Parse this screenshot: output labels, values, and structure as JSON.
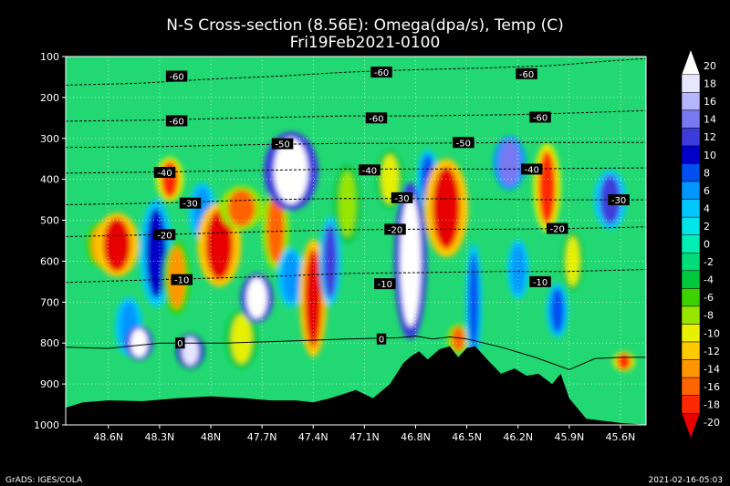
{
  "chart_data": {
    "type": "heatmap",
    "title": "N-S Cross-section (8.56E): Omega(dpa/s), Temp (C)",
    "subtitle": "Fri19Feb2021-0100",
    "x_ticks": [
      "48.6N",
      "48.3N",
      "48N",
      "47.7N",
      "47.4N",
      "47.1N",
      "46.8N",
      "46.5N",
      "46.2N",
      "45.9N",
      "45.6N"
    ],
    "x_tick_values": [
      48.6,
      48.3,
      48.0,
      47.7,
      47.4,
      47.1,
      46.8,
      46.5,
      46.2,
      45.9,
      45.6
    ],
    "xlim": [
      48.85,
      45.45
    ],
    "y_ticks": [
      100,
      200,
      300,
      400,
      500,
      600,
      700,
      800,
      900,
      1000
    ],
    "ylim": [
      100,
      1000
    ],
    "colorbar_levels": [
      20,
      18,
      16,
      14,
      12,
      10,
      8,
      6,
      4,
      2,
      0,
      -2,
      -4,
      -6,
      -8,
      -10,
      -12,
      -14,
      -16,
      -18,
      -20
    ],
    "colorbar_colors": [
      "#ffffff",
      "#e6e6ff",
      "#b4b4ff",
      "#7878f0",
      "#3c3cdc",
      "#0000c8",
      "#0050f0",
      "#0096ff",
      "#00c8ff",
      "#00e6e6",
      "#00eeb4",
      "#00dc78",
      "#00c83c",
      "#3cd200",
      "#96e600",
      "#e6f000",
      "#ffc800",
      "#ff9600",
      "#ff6400",
      "#ff2800",
      "#e60000"
    ],
    "temp_contours": [
      {
        "label": "-60",
        "points": [
          [
            48.85,
            170
          ],
          [
            48.4,
            165
          ],
          [
            48.0,
            155
          ],
          [
            47.6,
            148
          ],
          [
            47.2,
            138
          ],
          [
            46.8,
            132
          ],
          [
            46.4,
            128
          ],
          [
            46.0,
            122
          ],
          [
            45.7,
            112
          ],
          [
            45.45,
            105
          ]
        ]
      },
      {
        "label": "-60",
        "points": [
          [
            48.85,
            258
          ],
          [
            48.3,
            255
          ],
          [
            47.8,
            250
          ],
          [
            47.2,
            245
          ],
          [
            46.8,
            245
          ],
          [
            46.2,
            242
          ],
          [
            45.8,
            237
          ],
          [
            45.45,
            232
          ]
        ]
      },
      {
        "label": "-50",
        "points": [
          [
            48.85,
            322
          ],
          [
            48.3,
            320
          ],
          [
            47.7,
            315
          ],
          [
            47.2,
            312
          ],
          [
            46.8,
            312
          ],
          [
            46.2,
            310
          ],
          [
            45.8,
            310
          ],
          [
            45.45,
            310
          ]
        ]
      },
      {
        "label": "-40",
        "points": [
          [
            48.85,
            385
          ],
          [
            48.3,
            382
          ],
          [
            47.7,
            378
          ],
          [
            47.2,
            375
          ],
          [
            46.8,
            375
          ],
          [
            46.2,
            375
          ],
          [
            45.8,
            373
          ],
          [
            45.45,
            372
          ]
        ]
      },
      {
        "label": "-30",
        "points": [
          [
            48.85,
            462
          ],
          [
            48.3,
            458
          ],
          [
            47.7,
            450
          ],
          [
            47.3,
            447
          ],
          [
            46.9,
            447
          ],
          [
            46.5,
            448
          ],
          [
            46.0,
            450
          ],
          [
            45.6,
            450
          ],
          [
            45.45,
            450
          ]
        ]
      },
      {
        "label": "-20",
        "points": [
          [
            48.85,
            540
          ],
          [
            48.3,
            535
          ],
          [
            47.7,
            528
          ],
          [
            47.2,
            523
          ],
          [
            46.8,
            522
          ],
          [
            46.3,
            522
          ],
          [
            45.9,
            520
          ],
          [
            45.6,
            518
          ],
          [
            45.45,
            516
          ]
        ]
      },
      {
        "label": "-10",
        "points": [
          [
            48.85,
            652
          ],
          [
            48.3,
            645
          ],
          [
            47.7,
            638
          ],
          [
            47.2,
            630
          ],
          [
            46.8,
            628
          ],
          [
            46.3,
            625
          ],
          [
            45.9,
            625
          ],
          [
            45.6,
            622
          ],
          [
            45.45,
            620
          ]
        ]
      },
      {
        "label": "0",
        "points": [
          [
            48.85,
            810
          ],
          [
            48.6,
            813
          ],
          [
            48.3,
            800
          ],
          [
            47.9,
            800
          ],
          [
            47.6,
            796
          ],
          [
            47.2,
            790
          ],
          [
            46.9,
            787
          ],
          [
            46.8,
            783
          ],
          [
            46.7,
            790
          ],
          [
            46.6,
            785
          ],
          [
            46.5,
            790
          ],
          [
            46.3,
            810
          ],
          [
            46.1,
            835
          ],
          [
            45.9,
            865
          ],
          [
            45.75,
            838
          ],
          [
            45.6,
            835
          ],
          [
            45.45,
            835
          ]
        ]
      }
    ],
    "contour_label_positions": [
      {
        "text": "-60",
        "x": 48.2,
        "y": 148
      },
      {
        "text": "-60",
        "x": 47.0,
        "y": 138
      },
      {
        "text": "-60",
        "x": 46.15,
        "y": 142
      },
      {
        "text": "-60",
        "x": 48.2,
        "y": 257
      },
      {
        "text": "-60",
        "x": 47.03,
        "y": 250
      },
      {
        "text": "-60",
        "x": 46.07,
        "y": 248
      },
      {
        "text": "-50",
        "x": 47.58,
        "y": 313
      },
      {
        "text": "-50",
        "x": 46.52,
        "y": 310
      },
      {
        "text": "-40",
        "x": 48.27,
        "y": 383
      },
      {
        "text": "-40",
        "x": 47.07,
        "y": 377
      },
      {
        "text": "-40",
        "x": 46.12,
        "y": 375
      },
      {
        "text": "-30",
        "x": 48.12,
        "y": 458
      },
      {
        "text": "-30",
        "x": 46.88,
        "y": 445
      },
      {
        "text": "-30",
        "x": 45.61,
        "y": 450
      },
      {
        "text": "-20",
        "x": 48.27,
        "y": 535
      },
      {
        "text": "-20",
        "x": 46.92,
        "y": 522
      },
      {
        "text": "-20",
        "x": 45.97,
        "y": 520
      },
      {
        "text": "-10",
        "x": 48.17,
        "y": 645
      },
      {
        "text": "-10",
        "x": 46.98,
        "y": 655
      },
      {
        "text": "-10",
        "x": 46.07,
        "y": 650
      },
      {
        "text": "0",
        "x": 48.18,
        "y": 800
      },
      {
        "text": "0",
        "x": 47.0,
        "y": 790
      }
    ],
    "terrain": [
      [
        48.85,
        958
      ],
      [
        48.75,
        945
      ],
      [
        48.6,
        940
      ],
      [
        48.4,
        942
      ],
      [
        48.2,
        935
      ],
      [
        48.0,
        930
      ],
      [
        47.8,
        935
      ],
      [
        47.65,
        940
      ],
      [
        47.5,
        940
      ],
      [
        47.4,
        945
      ],
      [
        47.3,
        935
      ],
      [
        47.15,
        915
      ],
      [
        47.05,
        935
      ],
      [
        46.95,
        900
      ],
      [
        46.87,
        848
      ],
      [
        46.82,
        830
      ],
      [
        46.78,
        820
      ],
      [
        46.73,
        840
      ],
      [
        46.66,
        815
      ],
      [
        46.6,
        808
      ],
      [
        46.55,
        835
      ],
      [
        46.5,
        812
      ],
      [
        46.45,
        808
      ],
      [
        46.38,
        840
      ],
      [
        46.3,
        875
      ],
      [
        46.22,
        862
      ],
      [
        46.15,
        880
      ],
      [
        46.08,
        875
      ],
      [
        46.0,
        900
      ],
      [
        45.95,
        875
      ],
      [
        45.9,
        935
      ],
      [
        45.8,
        985
      ],
      [
        45.7,
        990
      ],
      [
        45.6,
        995
      ],
      [
        45.45,
        1000
      ]
    ],
    "omega_features": [
      {
        "x": 48.65,
        "w": 0.05,
        "y": 560,
        "h": 90,
        "v": -15
      },
      {
        "x": 48.55,
        "w": 0.08,
        "y": 560,
        "h": 130,
        "v": -20
      },
      {
        "x": 48.48,
        "w": 0.05,
        "y": 760,
        "h": 120,
        "v": 6
      },
      {
        "x": 48.42,
        "w": 0.05,
        "y": 800,
        "h": 70,
        "v": 20
      },
      {
        "x": 48.32,
        "w": 0.06,
        "y": 580,
        "h": 220,
        "v": 10
      },
      {
        "x": 48.24,
        "w": 0.05,
        "y": 400,
        "h": 90,
        "v": -18
      },
      {
        "x": 48.2,
        "w": 0.05,
        "y": 640,
        "h": 150,
        "v": -14
      },
      {
        "x": 48.12,
        "w": 0.05,
        "y": 820,
        "h": 70,
        "v": 18
      },
      {
        "x": 48.05,
        "w": 0.05,
        "y": 480,
        "h": 120,
        "v": 6
      },
      {
        "x": 47.95,
        "w": 0.08,
        "y": 560,
        "h": 170,
        "v": -20
      },
      {
        "x": 47.82,
        "w": 0.08,
        "y": 470,
        "h": 90,
        "v": -17
      },
      {
        "x": 47.82,
        "w": 0.06,
        "y": 790,
        "h": 120,
        "v": -10
      },
      {
        "x": 47.73,
        "w": 0.06,
        "y": 690,
        "h": 100,
        "v": 20
      },
      {
        "x": 47.62,
        "w": 0.05,
        "y": 520,
        "h": 170,
        "v": -17
      },
      {
        "x": 47.53,
        "w": 0.1,
        "y": 380,
        "h": 160,
        "v": 20
      },
      {
        "x": 47.53,
        "w": 0.05,
        "y": 640,
        "h": 120,
        "v": 6
      },
      {
        "x": 47.4,
        "w": 0.05,
        "y": 690,
        "h": 240,
        "v": -20
      },
      {
        "x": 47.3,
        "w": 0.04,
        "y": 600,
        "h": 180,
        "v": 12
      },
      {
        "x": 47.2,
        "w": 0.05,
        "y": 460,
        "h": 160,
        "v": -8
      },
      {
        "x": 46.95,
        "w": 0.05,
        "y": 400,
        "h": 120,
        "v": -10
      },
      {
        "x": 46.83,
        "w": 0.06,
        "y": 600,
        "h": 320,
        "v": 20
      },
      {
        "x": 46.73,
        "w": 0.04,
        "y": 400,
        "h": 120,
        "v": 8
      },
      {
        "x": 46.62,
        "w": 0.08,
        "y": 470,
        "h": 200,
        "v": -20
      },
      {
        "x": 46.55,
        "w": 0.04,
        "y": 790,
        "h": 60,
        "v": -16
      },
      {
        "x": 46.46,
        "w": 0.03,
        "y": 700,
        "h": 240,
        "v": 8
      },
      {
        "x": 46.25,
        "w": 0.06,
        "y": 360,
        "h": 110,
        "v": 14
      },
      {
        "x": 46.2,
        "w": 0.04,
        "y": 620,
        "h": 120,
        "v": 6
      },
      {
        "x": 46.03,
        "w": 0.05,
        "y": 420,
        "h": 180,
        "v": -18
      },
      {
        "x": 45.97,
        "w": 0.04,
        "y": 720,
        "h": 110,
        "v": 8
      },
      {
        "x": 45.88,
        "w": 0.04,
        "y": 600,
        "h": 120,
        "v": -10
      },
      {
        "x": 45.66,
        "w": 0.06,
        "y": 450,
        "h": 120,
        "v": 12
      },
      {
        "x": 45.58,
        "w": 0.04,
        "y": 845,
        "h": 40,
        "v": -18
      }
    ],
    "footer_left": "GrADS: IGES/COLA",
    "footer_right": "2021-02-16-05:03"
  }
}
